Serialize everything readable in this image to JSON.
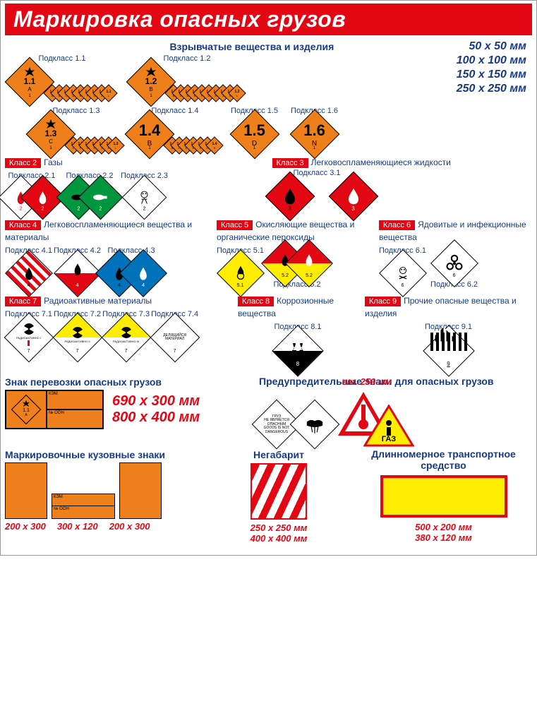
{
  "banner": {
    "title": "Маркировка опасных грузов",
    "bg": "#e30613"
  },
  "colors": {
    "orange": "#ef7f1a",
    "blue": "#173a84",
    "red": "#e30613",
    "green": "#009640",
    "green2": "#009640",
    "yellow": "#ffed00",
    "white": "#ffffff",
    "black": "#000000",
    "skyblue": "#0072bc"
  },
  "class1": {
    "title": "Взрывчатые вещества и изделия",
    "sizes": [
      "50 x 50 мм",
      "100 x 100 мм",
      "150 x 150 мм",
      "250 x 250 мм"
    ],
    "sub11": {
      "label": "Подкласс 1.1",
      "big": "1.1",
      "big_sub": "A",
      "corner": "1",
      "small": [
        "1.1 A",
        "1.1 B",
        "1.1 C",
        "1.1 D",
        "1.1 E",
        "1.1 F",
        "1.1 G",
        "1.1 J",
        "1.1 L"
      ]
    },
    "sub12": {
      "label": "Подкласс 1.2",
      "big": "1.2",
      "big_sub": "B",
      "corner": "1",
      "small": [
        "1.2 B",
        "1.2 C",
        "1.2 D",
        "1.2 E",
        "1.2 F",
        "1.2 G",
        "1.2 H",
        "1.2 J",
        "1.2 K",
        "1.2 L"
      ]
    },
    "sub13": {
      "label": "Подкласс 1.3",
      "big": "1.3",
      "big_sub": "C",
      "corner": "1",
      "small": [
        "1.3 C",
        "1.3 F",
        "1.3 G",
        "1.3 H",
        "1.3 J",
        "1.3 K",
        "1.3 L"
      ]
    },
    "sub14": {
      "label": "Подкласс 1.4",
      "big": "1.4",
      "big_sub": "B",
      "corner": "1",
      "small": [
        "1.4 B",
        "1.4 C",
        "1.4 D",
        "1.4 E",
        "1.4 F",
        "1.4 G",
        "1.4 S"
      ]
    },
    "sub15": {
      "label": "Подкласс 1.5",
      "big": "1.5",
      "big_sub": "D",
      "corner": "1"
    },
    "sub16": {
      "label": "Подкласс 1.6",
      "big": "1.6",
      "big_sub": "N",
      "corner": "1"
    }
  },
  "class2": {
    "label": "Класс 2",
    "desc": "Газы",
    "s21": "Подкласс 2.1",
    "s22": "Подкласс 2.2",
    "s23": "Подкласс 2.3"
  },
  "class3": {
    "label": "Класс 3",
    "desc": "Легковоспламеняющиеся жидкости",
    "s31": "Подкласс 3.1"
  },
  "class4": {
    "label": "Класс 4",
    "desc": "Легковоспламеняющиеся вещества и материалы",
    "s41": "Подкласс 4.1",
    "s42": "Подкласс 4.2",
    "s43": "Подкласс 4.3"
  },
  "class5": {
    "label": "Класс 5",
    "desc": "Окисляющие вещества и органические пероксиды",
    "s51": "Подкласс 5.1",
    "s52": "Подкласс 5.2"
  },
  "class6": {
    "label": "Класс 6",
    "desc": "Ядовитые и инфекционные вещества",
    "s61": "Подкласс 6.1",
    "s62": "Подкласс 6.2"
  },
  "class7": {
    "label": "Класс 7",
    "desc": "Радиоактивные материалы",
    "s71": "Подкласс 7.1",
    "s72": "Подкласс 7.2",
    "s73": "Подкласс 7.3",
    "s74": "Подкласс 7.4",
    "rad1": "РАДИОАКТИВНО I",
    "rad2": "РАДИОАКТИВНО II",
    "rad3": "РАДИОАКТИВНО III",
    "fissile": "ДЕЛЯЩИЙСЯ МАТЕРИАЛ"
  },
  "class8": {
    "label": "Класс 8",
    "desc": "Коррозионные вещества",
    "s81": "Подкласс 8.1"
  },
  "class9": {
    "label": "Класс 9",
    "desc": "Прочие опасные вещества и изделия",
    "s91": "Подкласс 9.1"
  },
  "transport_sign": {
    "title": "Знак перевозки опасных грузов",
    "sizes": [
      "690 x 300 мм",
      "800 x 400 мм"
    ],
    "panel": {
      "big": "1.1",
      "big_sub": "A",
      "corner": "1",
      "kem": "КЭМ",
      "un": "№ ООН"
    }
  },
  "warning": {
    "title": "Предупредительные знаки для опасных грузов",
    "not_danger": [
      "ГРУЗ",
      "НЕ ЯВЛЯЕТСЯ",
      "ОПАСНЫМ",
      "GOODS IS NOT",
      "DANGEROUS"
    ],
    "height": "ст. 250 мм",
    "gas": "ГАЗ"
  },
  "body_marks": {
    "title": "Маркировочные кузовные знаки",
    "sizes": [
      "200 x 300",
      "300 x 120",
      "200 x 300"
    ],
    "kem": "КЭМ",
    "un": "№ ООН"
  },
  "oversized": {
    "title": "Негабарит",
    "sizes": [
      "250 x 250 мм",
      "400 x 400 мм"
    ]
  },
  "long_vehicle": {
    "title": "Длинномерное транспортное средство",
    "sizes": [
      "500 x 200 мм",
      "380 x 120 мм"
    ]
  }
}
